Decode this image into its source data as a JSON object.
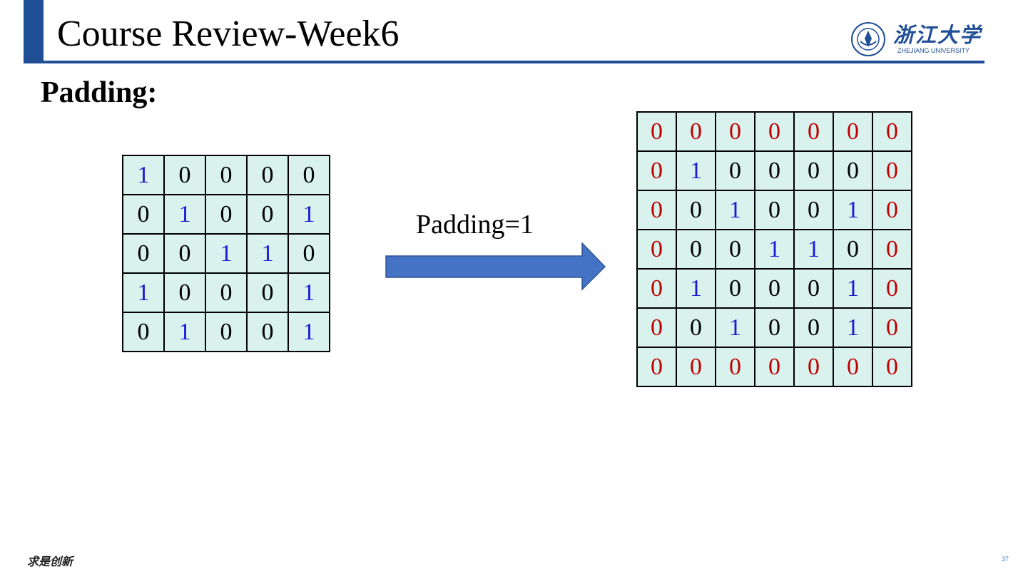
{
  "slide": {
    "title": "Course Review-Week6",
    "heading": "Padding:",
    "arrow_label": "Padding=1",
    "footer_mark": "求是创新",
    "page_number": "37"
  },
  "logo": {
    "name_cn": "浙江大学",
    "name_en": "ZHEJIANG UNIVERSITY",
    "seal_icon": "zju-seal-icon"
  },
  "colors": {
    "accent": "#1f4e96",
    "cell_bg": "#d9f2ee",
    "zero": "#000000",
    "one": "#1a1ad6",
    "padding_zero": "#c00000",
    "arrow": "#4472c4"
  },
  "input_matrix": [
    [
      1,
      0,
      0,
      0,
      0
    ],
    [
      0,
      1,
      0,
      0,
      1
    ],
    [
      0,
      0,
      1,
      1,
      0
    ],
    [
      1,
      0,
      0,
      0,
      1
    ],
    [
      0,
      1,
      0,
      0,
      1
    ]
  ],
  "padding": 1,
  "pad_value": 0
}
